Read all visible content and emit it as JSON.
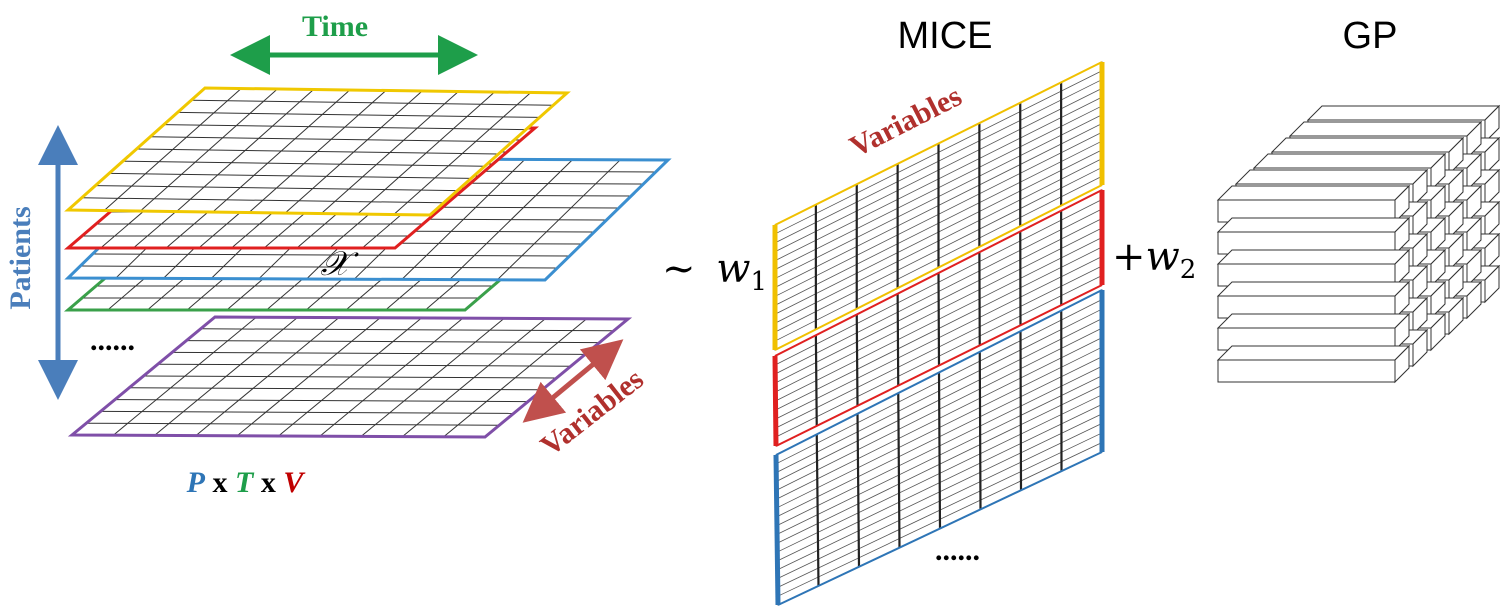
{
  "tensor": {
    "time_label": "Time",
    "patients_label": "Patients",
    "variables_label": "Variables",
    "ellipsis": "......",
    "tensor_symbol": "𝒳",
    "dims": {
      "p": "P",
      "x1": "x",
      "t": "T",
      "x2": "x",
      "v": "V"
    }
  },
  "mice": {
    "title": "MICE",
    "variables_label": "Variables",
    "ellipsis": "......",
    "prefix": "~",
    "weight": {
      "symbol": "w",
      "subscript": "1"
    }
  },
  "gp": {
    "title": "GP",
    "prefix": "+",
    "weight": {
      "symbol": "w",
      "subscript": "2"
    }
  }
}
